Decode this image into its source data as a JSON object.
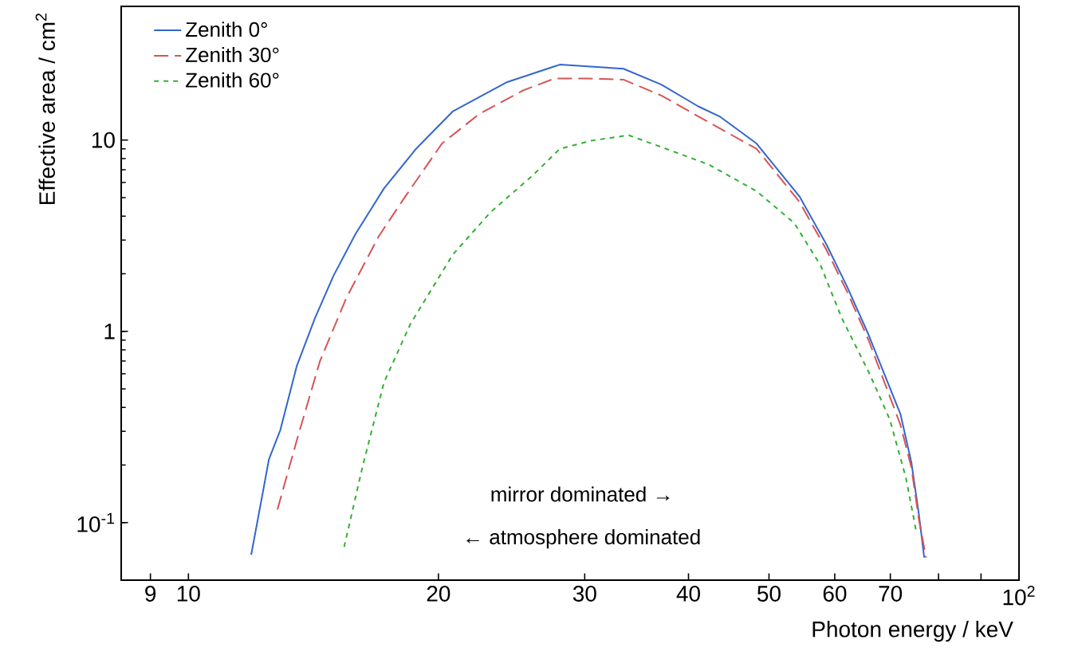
{
  "chart_data": {
    "type": "line",
    "xlabel": "Photon energy / keV",
    "ylabel": "Effective area / cm$^{2}$",
    "log": "xy",
    "legend": "top left",
    "xlim": [
      8.3,
      100
    ],
    "ylim": [
      0.05,
      50
    ],
    "xticks": [
      9,
      10,
      20,
      30,
      40,
      50,
      60,
      70,
      {
        "value": 80,
        "label": null
      },
      {
        "value": 90,
        "label": null
      },
      {
        "value": 100,
        "label": "10$^{2}$"
      }
    ],
    "yticks": [
      {
        "value": 0.1,
        "label": "10$^{-1}$"
      },
      1,
      10
    ],
    "annotations": [
      "mirror dominated →",
      "← atmosphere dominated"
    ],
    "series": [
      {
        "name": "Zenith 0°",
        "color": "#3366cc",
        "line_style": "solid",
        "x": [
          11.9,
          12.25,
          12.5,
          12.9,
          13.5,
          14.2,
          14.95,
          15.9,
          17.2,
          18.8,
          20.8,
          24.2,
          27.6,
          28.0,
          30.2,
          33.4,
          37.1,
          41.1,
          43.6,
          48.3,
          54.4,
          58.6,
          62.1,
          65.9,
          72.0,
          74.2,
          75.8,
          76.9
        ],
        "values": [
          0.0678,
          0.133,
          0.214,
          0.304,
          0.656,
          1.17,
          1.95,
          3.24,
          5.59,
          9.0,
          14.1,
          20.1,
          24.3,
          24.8,
          24.3,
          23.6,
          19.5,
          15.0,
          13.3,
          9.6,
          5.08,
          2.86,
          1.71,
          0.96,
          0.369,
          0.207,
          0.109,
          0.0656
        ]
      },
      {
        "name": "Zenith 30°",
        "color": "#d45555",
        "line_style": "dashed",
        "x": [
          12.8,
          13.5,
          14.4,
          15.5,
          16.95,
          18.25,
          20.2,
          22.4,
          25.3,
          27.6,
          28.0,
          30.2,
          33.4,
          37.1,
          41.1,
          48.3,
          54.4,
          58.6,
          62.1,
          65.9,
          72.0,
          74.2,
          75.8,
          77.3
        ],
        "values": [
          0.117,
          0.268,
          0.698,
          1.5,
          3.14,
          5.08,
          9.6,
          13.7,
          18.2,
          21.0,
          21.0,
          21.0,
          20.7,
          17.1,
          13.3,
          9.0,
          4.76,
          2.68,
          1.61,
          0.9,
          0.324,
          0.195,
          0.1026,
          0.0656
        ]
      },
      {
        "name": "Zenith 60°",
        "color": "#33b033",
        "line_style": "dotted",
        "x": [
          15.4,
          16.2,
          17.2,
          18.5,
          20.8,
          23.1,
          26.0,
          27.6,
          28.0,
          30.6,
          33.9,
          37.6,
          42.3,
          48.3,
          53.6,
          57.7,
          61.2,
          65.9,
          69.9,
          73.1,
          75.2
        ],
        "values": [
          0.0746,
          0.195,
          0.541,
          1.09,
          2.51,
          4.19,
          6.56,
          8.46,
          9.0,
          9.94,
          10.6,
          9.0,
          7.45,
          5.41,
          3.69,
          2.21,
          1.17,
          0.615,
          0.346,
          0.171,
          0.0903
        ]
      }
    ]
  }
}
